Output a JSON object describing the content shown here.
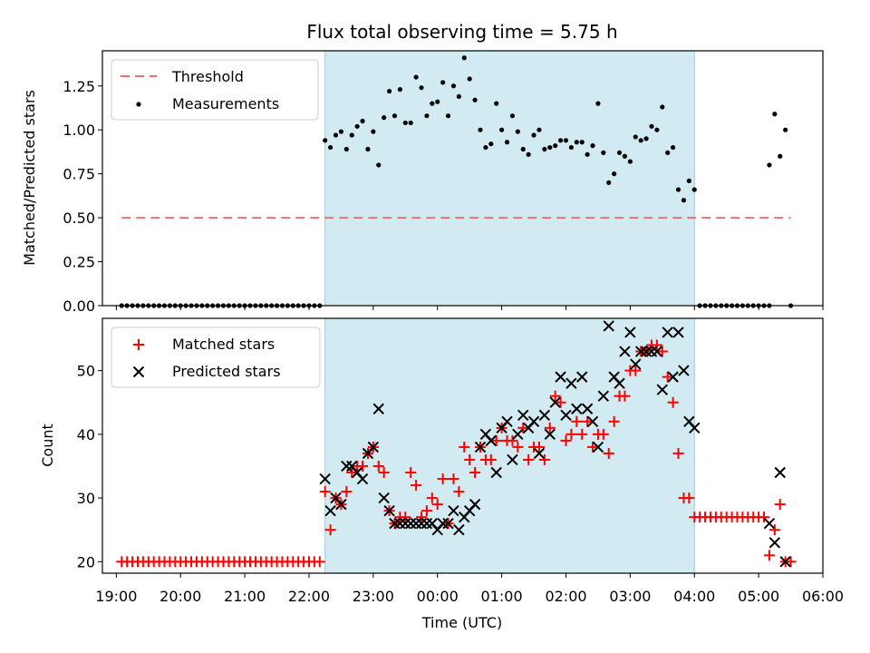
{
  "chart_data": [
    {
      "type": "scatter",
      "title": "Flux total observing time = 5.75 h",
      "xlabel": "",
      "ylabel": "Matched/Predicted stars",
      "ylim": [
        0,
        1.45
      ],
      "yticks": [
        "0.00",
        "0.25",
        "0.50",
        "0.75",
        "1.00",
        "1.25"
      ],
      "legend": {
        "position": "top-left",
        "threshold_label": "Threshold",
        "measurements_label": "Measurements"
      },
      "colors": {
        "threshold": "#f07070",
        "measurements": "#000000",
        "span": "#add8e6"
      },
      "shaded_interval": [
        "22:15",
        "04:00"
      ],
      "threshold": {
        "y": 0.5,
        "x_range": [
          "19:05",
          "05:30"
        ]
      },
      "zero_points_start": {
        "x_range": [
          "19:05",
          "22:12"
        ],
        "interval_min": 5,
        "y": 0
      },
      "zero_points_end": {
        "x_range": [
          "04:05",
          "05:10"
        ],
        "interval_min": 5,
        "y": 0
      },
      "measurements": [
        [
          "22:15",
          0.94
        ],
        [
          "22:20",
          0.9
        ],
        [
          "22:25",
          0.97
        ],
        [
          "22:30",
          0.99
        ],
        [
          "22:35",
          0.89
        ],
        [
          "22:40",
          0.97
        ],
        [
          "22:45",
          1.02
        ],
        [
          "22:50",
          1.05
        ],
        [
          "22:55",
          0.89
        ],
        [
          "23:00",
          0.99
        ],
        [
          "23:05",
          0.8
        ],
        [
          "23:10",
          1.07
        ],
        [
          "23:15",
          1.22
        ],
        [
          "23:20",
          1.08
        ],
        [
          "23:25",
          1.23
        ],
        [
          "23:30",
          1.04
        ],
        [
          "23:35",
          1.04
        ],
        [
          "23:40",
          1.3
        ],
        [
          "23:45",
          1.24
        ],
        [
          "23:50",
          1.08
        ],
        [
          "23:55",
          1.15
        ],
        [
          "00:00",
          1.16
        ],
        [
          "00:05",
          1.27
        ],
        [
          "00:10",
          1.08
        ],
        [
          "00:15",
          1.25
        ],
        [
          "00:20",
          1.19
        ],
        [
          "00:25",
          1.41
        ],
        [
          "00:30",
          1.29
        ],
        [
          "00:35",
          1.17
        ],
        [
          "00:40",
          1.0
        ],
        [
          "00:45",
          0.9
        ],
        [
          "00:50",
          0.92
        ],
        [
          "00:55",
          1.15
        ],
        [
          "01:00",
          1.0
        ],
        [
          "01:05",
          0.93
        ],
        [
          "01:10",
          1.08
        ],
        [
          "01:15",
          0.99
        ],
        [
          "01:20",
          0.89
        ],
        [
          "01:25",
          0.86
        ],
        [
          "01:30",
          0.97
        ],
        [
          "01:35",
          1.0
        ],
        [
          "01:40",
          0.89
        ],
        [
          "01:45",
          0.9
        ],
        [
          "01:50",
          0.91
        ],
        [
          "01:55",
          0.94
        ],
        [
          "02:00",
          0.94
        ],
        [
          "02:05",
          0.9
        ],
        [
          "02:10",
          0.93
        ],
        [
          "02:15",
          0.93
        ],
        [
          "02:20",
          0.86
        ],
        [
          "02:25",
          0.91
        ],
        [
          "02:30",
          1.15
        ],
        [
          "02:35",
          0.87
        ],
        [
          "02:40",
          0.7
        ],
        [
          "02:45",
          0.75
        ],
        [
          "02:50",
          0.87
        ],
        [
          "02:55",
          0.85
        ],
        [
          "03:00",
          0.82
        ],
        [
          "03:05",
          0.96
        ],
        [
          "03:10",
          0.94
        ],
        [
          "03:15",
          0.95
        ],
        [
          "03:20",
          1.02
        ],
        [
          "03:25",
          1.0
        ],
        [
          "03:30",
          1.13
        ],
        [
          "03:35",
          0.87
        ],
        [
          "03:40",
          0.9
        ],
        [
          "03:45",
          0.66
        ],
        [
          "03:50",
          0.6
        ],
        [
          "03:55",
          0.71
        ],
        [
          "04:00",
          0.66
        ],
        [
          "05:10",
          0.8
        ],
        [
          "05:15",
          1.09
        ],
        [
          "05:20",
          0.85
        ],
        [
          "05:25",
          1.0
        ],
        [
          "05:30",
          0.0
        ]
      ]
    },
    {
      "type": "scatter",
      "title": "",
      "xlabel": "Time (UTC)",
      "ylabel": "Count",
      "ylim": [
        18.2,
        58.2
      ],
      "yticks": [
        "20",
        "30",
        "40",
        "50"
      ],
      "xticks": [
        "19:00",
        "20:00",
        "21:00",
        "22:00",
        "23:00",
        "00:00",
        "01:00",
        "02:00",
        "03:00",
        "04:00",
        "05:00",
        "06:00"
      ],
      "legend": {
        "position": "top-left",
        "matched_label": "Matched stars",
        "predicted_label": "Predicted stars"
      },
      "colors": {
        "matched": "#ff0000",
        "predicted": "#000000",
        "span": "#add8e6"
      },
      "shaded_interval": [
        "22:15",
        "04:00"
      ],
      "baseline_matched_start": {
        "x_range": [
          "19:05",
          "22:12"
        ],
        "interval_min": 5,
        "y": 20
      },
      "baseline_matched_end": {
        "x_range": [
          "04:00",
          "05:05"
        ],
        "interval_min": 5,
        "y": 27
      },
      "series": [
        {
          "name": "Matched stars",
          "points": [
            [
              "22:15",
              31
            ],
            [
              "22:20",
              25
            ],
            [
              "22:25",
              30
            ],
            [
              "22:30",
              29
            ],
            [
              "22:35",
              31
            ],
            [
              "22:40",
              34
            ],
            [
              "22:45",
              35
            ],
            [
              "22:50",
              35
            ],
            [
              "22:55",
              37
            ],
            [
              "23:00",
              38
            ],
            [
              "23:05",
              35
            ],
            [
              "23:10",
              34
            ],
            [
              "23:15",
              28
            ],
            [
              "23:20",
              26
            ],
            [
              "23:25",
              27
            ],
            [
              "23:30",
              27
            ],
            [
              "23:35",
              34
            ],
            [
              "23:40",
              32
            ],
            [
              "23:45",
              27
            ],
            [
              "23:50",
              28
            ],
            [
              "23:55",
              30
            ],
            [
              "00:00",
              29
            ],
            [
              "00:05",
              33
            ],
            [
              "00:10",
              26
            ],
            [
              "00:15",
              33
            ],
            [
              "00:20",
              31
            ],
            [
              "00:25",
              38
            ],
            [
              "00:30",
              36
            ],
            [
              "00:35",
              34
            ],
            [
              "00:40",
              38
            ],
            [
              "00:45",
              36
            ],
            [
              "00:50",
              36
            ],
            [
              "00:55",
              39
            ],
            [
              "01:00",
              41
            ],
            [
              "01:05",
              39
            ],
            [
              "01:10",
              39
            ],
            [
              "01:15",
              38
            ],
            [
              "01:20",
              41
            ],
            [
              "01:25",
              36
            ],
            [
              "01:30",
              38
            ],
            [
              "01:35",
              38
            ],
            [
              "01:40",
              36
            ],
            [
              "01:45",
              41
            ],
            [
              "01:50",
              46
            ],
            [
              "01:55",
              45
            ],
            [
              "02:00",
              39
            ],
            [
              "02:05",
              40
            ],
            [
              "02:10",
              42
            ],
            [
              "02:15",
              40
            ],
            [
              "02:20",
              42
            ],
            [
              "02:25",
              38
            ],
            [
              "02:30",
              40
            ],
            [
              "02:35",
              40
            ],
            [
              "02:40",
              37
            ],
            [
              "02:45",
              42
            ],
            [
              "02:50",
              46
            ],
            [
              "02:55",
              46
            ],
            [
              "03:00",
              50
            ],
            [
              "03:05",
              50
            ],
            [
              "03:10",
              53
            ],
            [
              "03:15",
              53
            ],
            [
              "03:20",
              54
            ],
            [
              "03:25",
              54
            ],
            [
              "03:30",
              53
            ],
            [
              "03:35",
              49
            ],
            [
              "03:40",
              45
            ],
            [
              "03:45",
              37
            ],
            [
              "03:50",
              30
            ],
            [
              "03:55",
              30
            ],
            [
              "05:10",
              21
            ],
            [
              "05:15",
              25
            ],
            [
              "05:20",
              29
            ],
            [
              "05:25",
              20
            ],
            [
              "05:30",
              20
            ]
          ]
        },
        {
          "name": "Predicted stars",
          "points": [
            [
              "22:15",
              33
            ],
            [
              "22:20",
              28
            ],
            [
              "22:25",
              30
            ],
            [
              "22:30",
              29
            ],
            [
              "22:35",
              35
            ],
            [
              "22:40",
              35
            ],
            [
              "22:45",
              34
            ],
            [
              "22:50",
              33
            ],
            [
              "22:55",
              37
            ],
            [
              "23:00",
              38
            ],
            [
              "23:05",
              44
            ],
            [
              "23:10",
              30
            ],
            [
              "23:15",
              28
            ],
            [
              "23:20",
              26
            ],
            [
              "23:25",
              26
            ],
            [
              "23:30",
              26
            ],
            [
              "23:35",
              26
            ],
            [
              "23:40",
              26
            ],
            [
              "23:45",
              26
            ],
            [
              "23:50",
              26
            ],
            [
              "23:55",
              26
            ],
            [
              "00:00",
              25
            ],
            [
              "00:05",
              26
            ],
            [
              "00:10",
              26
            ],
            [
              "00:15",
              28
            ],
            [
              "00:20",
              25
            ],
            [
              "00:25",
              27
            ],
            [
              "00:30",
              28
            ],
            [
              "00:35",
              29
            ],
            [
              "00:40",
              38
            ],
            [
              "00:45",
              40
            ],
            [
              "00:50",
              39
            ],
            [
              "00:55",
              34
            ],
            [
              "01:00",
              41
            ],
            [
              "01:05",
              42
            ],
            [
              "01:10",
              36
            ],
            [
              "01:15",
              40
            ],
            [
              "01:20",
              43
            ],
            [
              "01:25",
              41
            ],
            [
              "01:30",
              42
            ],
            [
              "01:35",
              37
            ],
            [
              "01:40",
              43
            ],
            [
              "01:45",
              40
            ],
            [
              "01:50",
              45
            ],
            [
              "01:55",
              49
            ],
            [
              "02:00",
              43
            ],
            [
              "02:05",
              48
            ],
            [
              "02:10",
              44
            ],
            [
              "02:15",
              49
            ],
            [
              "02:20",
              44
            ],
            [
              "02:25",
              42
            ],
            [
              "02:30",
              38
            ],
            [
              "02:35",
              46
            ],
            [
              "02:40",
              57
            ],
            [
              "02:45",
              49
            ],
            [
              "02:50",
              48
            ],
            [
              "02:55",
              53
            ],
            [
              "03:00",
              56
            ],
            [
              "03:05",
              51
            ],
            [
              "03:10",
              53
            ],
            [
              "03:15",
              53
            ],
            [
              "03:20",
              53
            ],
            [
              "03:25",
              53
            ],
            [
              "03:30",
              47
            ],
            [
              "03:35",
              56
            ],
            [
              "03:40",
              49
            ],
            [
              "03:45",
              56
            ],
            [
              "03:50",
              50
            ],
            [
              "03:55",
              42
            ],
            [
              "04:00",
              41
            ],
            [
              "05:10",
              26
            ],
            [
              "05:15",
              23
            ],
            [
              "05:20",
              34
            ],
            [
              "05:25",
              20
            ]
          ]
        }
      ]
    }
  ]
}
